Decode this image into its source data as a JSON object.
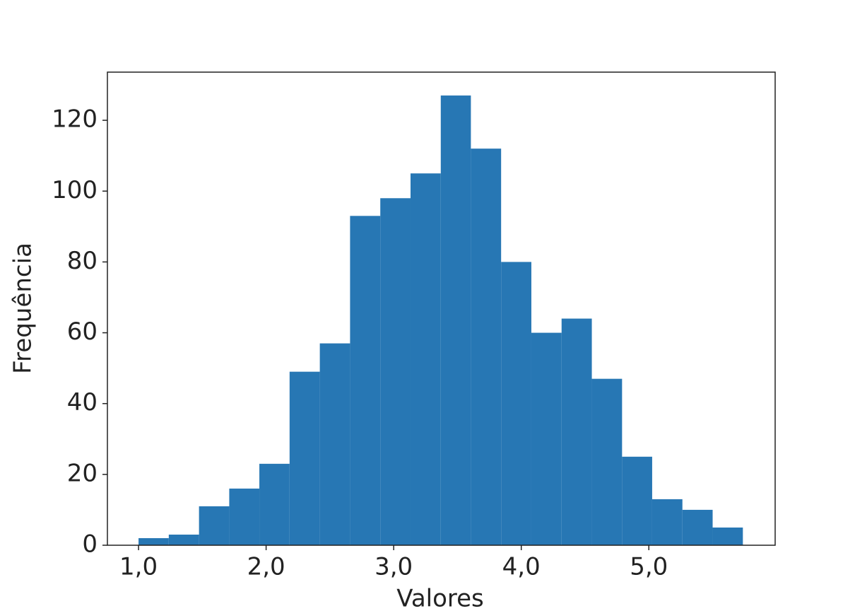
{
  "chart_data": {
    "type": "histogram",
    "xlabel": "Valores",
    "ylabel": "Frequência",
    "bins": [
      1.0,
      1.237,
      1.474,
      1.711,
      1.947,
      2.184,
      2.421,
      2.658,
      2.895,
      3.132,
      3.369,
      3.605,
      3.842,
      4.079,
      4.316,
      4.553,
      4.79,
      5.026,
      5.263,
      5.5,
      5.737
    ],
    "values": [
      2,
      3,
      11,
      16,
      23,
      49,
      57,
      93,
      98,
      105,
      127,
      112,
      80,
      60,
      64,
      47,
      25,
      13,
      10,
      5
    ],
    "color": "#2777b4",
    "xlim": [
      0.756,
      5.99
    ],
    "ylim": [
      0,
      133.6
    ],
    "xticks": [
      {
        "value": 1,
        "label": "1,0"
      },
      {
        "value": 2,
        "label": "2,0"
      },
      {
        "value": 3,
        "label": "3,0"
      },
      {
        "value": 4,
        "label": "4,0"
      },
      {
        "value": 5,
        "label": "5,0"
      }
    ],
    "yticks": [
      0,
      20,
      40,
      60,
      80,
      100,
      120
    ],
    "grid": false
  }
}
